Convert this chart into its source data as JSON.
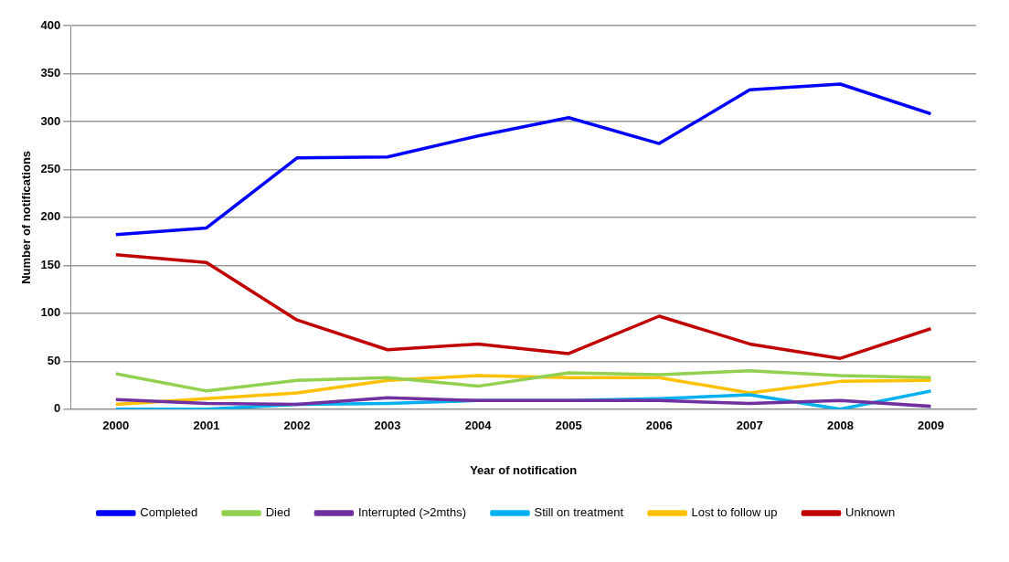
{
  "chart_data": {
    "type": "line",
    "xlabel": "Year of notification",
    "ylabel": "Number of notifications",
    "categories": [
      "2000",
      "2001",
      "2002",
      "2003",
      "2004",
      "2005",
      "2006",
      "2007",
      "2008",
      "2009"
    ],
    "series": [
      {
        "name": "Completed",
        "color": "#0000ff",
        "values": [
          182,
          189,
          262,
          263,
          285,
          304,
          277,
          333,
          339,
          308
        ]
      },
      {
        "name": "Died",
        "color": "#92d050",
        "values": [
          37,
          19,
          30,
          33,
          24,
          38,
          36,
          40,
          35,
          33
        ]
      },
      {
        "name": "Interrupted (>2mths)",
        "color": "#7030a0",
        "values": [
          10,
          6,
          5,
          12,
          9,
          9,
          9,
          6,
          9,
          3
        ]
      },
      {
        "name": "Still on treatment",
        "color": "#00b0f0",
        "values": [
          0,
          0,
          5,
          6,
          9,
          9,
          11,
          15,
          0,
          19
        ]
      },
      {
        "name": "Lost to follow up",
        "color": "#ffc000",
        "values": [
          5,
          11,
          17,
          30,
          35,
          33,
          33,
          17,
          29,
          30
        ]
      },
      {
        "name": "Unknown",
        "color": "#c00000",
        "values": [
          161,
          153,
          93,
          62,
          68,
          58,
          97,
          68,
          53,
          84
        ]
      }
    ],
    "ylim": [
      0,
      400
    ],
    "yticks": [
      0,
      50,
      100,
      150,
      200,
      250,
      300,
      350,
      400
    ],
    "grid": "y",
    "legend": "bottom",
    "marker": "none",
    "line_style": "solid"
  }
}
